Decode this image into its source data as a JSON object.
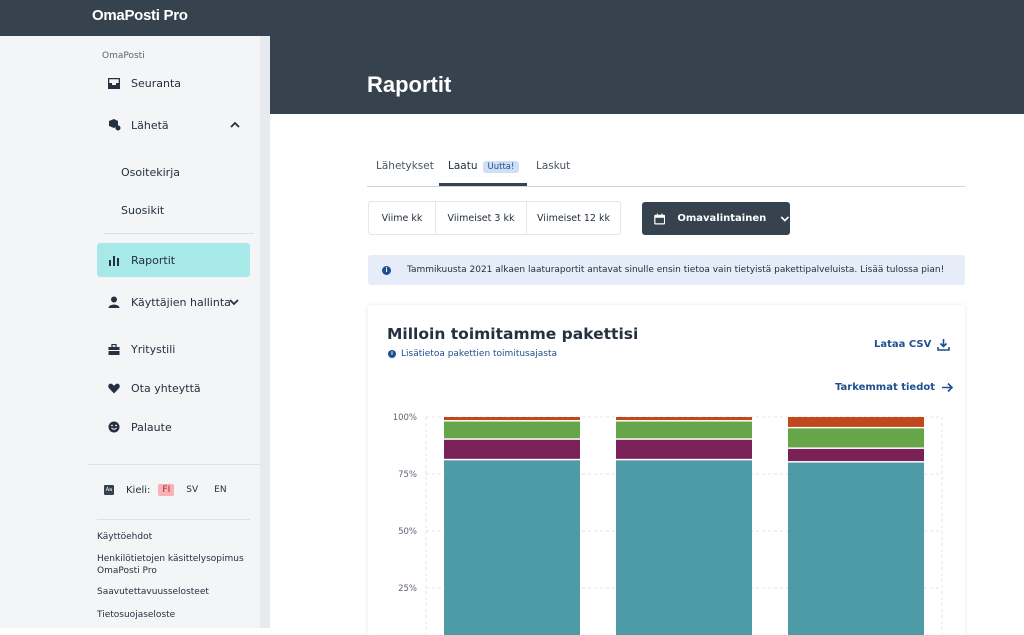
{
  "app": {
    "brand": "OmaPosti Pro"
  },
  "sidebar": {
    "section_label": "OmaPosti",
    "items": [
      {
        "label": "Seuranta",
        "icon": "inbox-icon"
      },
      {
        "label": "Lähetä",
        "icon": "send-package-icon",
        "expanded": true
      },
      {
        "label": "Raportit",
        "icon": "bar-chart-icon",
        "active": true
      },
      {
        "label": "Käyttäjien hallinta",
        "icon": "user-icon",
        "expanded": false
      },
      {
        "label": "Yritystili",
        "icon": "briefcase-icon"
      },
      {
        "label": "Ota yhteyttä",
        "icon": "heart-icon"
      },
      {
        "label": "Palaute",
        "icon": "smiley-icon"
      }
    ],
    "sub_items": [
      "Osoitekirja",
      "Suosikit"
    ],
    "language": {
      "label": "Kieli:",
      "icon_text": "Aa",
      "options": [
        "FI",
        "SV",
        "EN"
      ],
      "selected": "FI"
    },
    "footer_links": [
      "Käyttöehdot",
      "Henkilötietojen käsittelysopimus OmaPosti Pro",
      "Saavutettavuusselosteet",
      "Tietosuojaseloste"
    ]
  },
  "page": {
    "title": "Raportit"
  },
  "tabs": [
    {
      "label": "Lähetykset"
    },
    {
      "label": "Laatu",
      "badge": "Uutta!",
      "active": true
    },
    {
      "label": "Laskut"
    }
  ],
  "period": {
    "options": [
      "Viime kk",
      "Viimeiset 3 kk",
      "Viimeiset 12 kk"
    ],
    "custom_label": "Omavalintainen"
  },
  "info": {
    "text": "Tammikuusta 2021 alkaen laaturaportit antavat sinulle ensin tietoa vain tietyistä pakettipalveluista. Lisää tulossa pian!"
  },
  "card": {
    "title": "Milloin toimitamme pakettisi",
    "info_link": "Lisätietoa pakettien toimitusajasta",
    "csv_label": "Lataa CSV",
    "details_label": "Tarkemmat tiedot"
  },
  "colors": {
    "brand_dark": "#36434f",
    "active_nav": "#a6e9e8",
    "link": "#1f4f8f"
  },
  "chart_data": {
    "type": "bar",
    "stacked": true,
    "y_tick_labels": [
      "100%",
      "75%",
      "50%",
      "25%"
    ],
    "ylim": [
      0,
      100
    ],
    "categories": [
      "",
      "",
      ""
    ],
    "series": [
      {
        "values": [
          81,
          81,
          80
        ],
        "color": "#4e9ba8"
      },
      {
        "values": [
          9,
          9,
          6
        ],
        "color": "#7a2158"
      },
      {
        "values": [
          8,
          8,
          9
        ],
        "color": "#66a548"
      },
      {
        "values": [
          2,
          2,
          5
        ],
        "color": "#c3471d"
      }
    ]
  }
}
